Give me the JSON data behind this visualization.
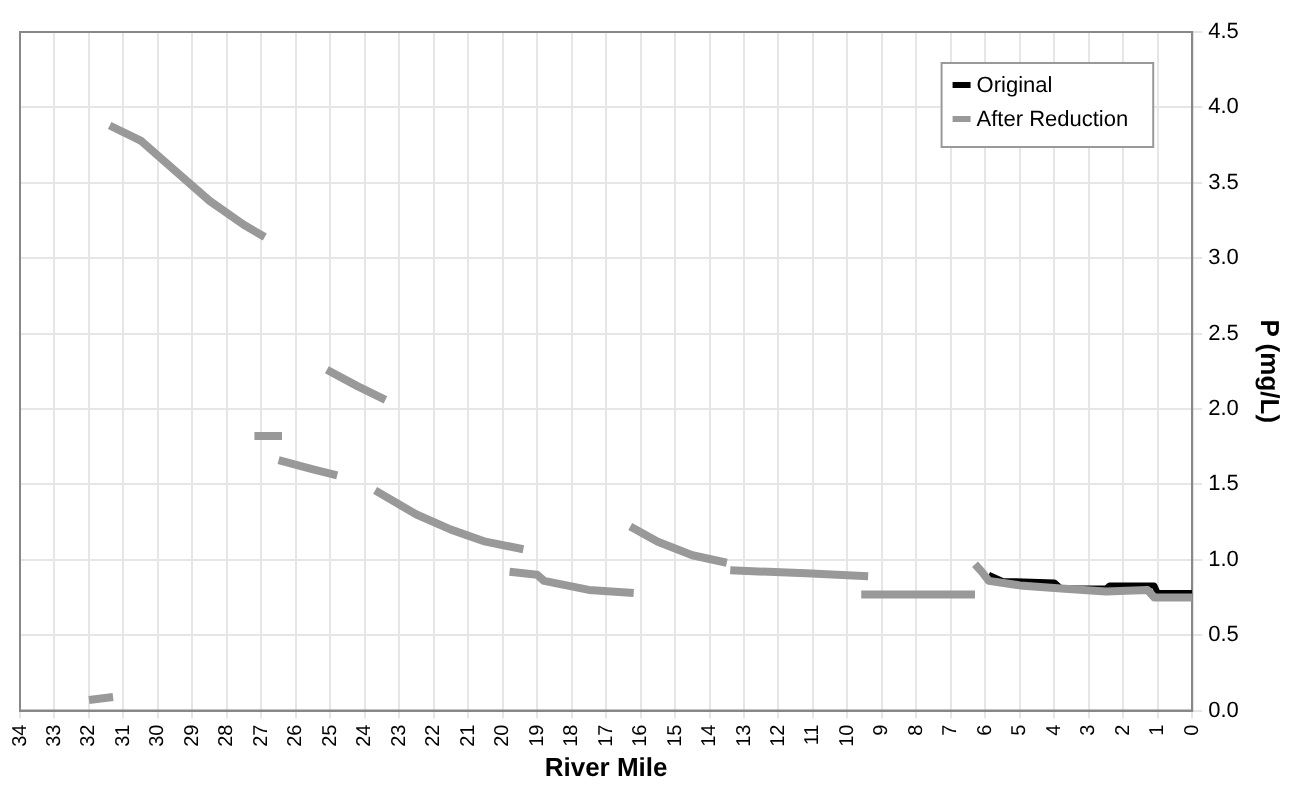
{
  "chart_data": {
    "type": "line",
    "xlabel": "River Mile",
    "ylabel": "P (mg/L)",
    "xlim": [
      34,
      0
    ],
    "xticks": [
      34,
      33,
      32,
      31,
      30,
      29,
      28,
      27,
      26,
      25,
      24,
      23,
      22,
      21,
      20,
      19,
      18,
      17,
      16,
      15,
      14,
      13,
      12,
      11,
      10,
      9,
      8,
      7,
      6,
      5,
      4,
      3,
      2,
      1,
      0
    ],
    "ylim": [
      0,
      4.5
    ],
    "yticks": [
      {
        "value": 0,
        "label": "0.0"
      },
      {
        "value": 0.5,
        "label": "0.5"
      },
      {
        "value": 1,
        "label": "1.0"
      },
      {
        "value": 1.5,
        "label": "1.5"
      },
      {
        "value": 2,
        "label": "2.0"
      },
      {
        "value": 2.5,
        "label": "2.5"
      },
      {
        "value": 3,
        "label": "3.0"
      },
      {
        "value": 3.5,
        "label": "3.5"
      },
      {
        "value": 4,
        "label": "4.0"
      },
      {
        "value": 4.5,
        "label": "4.5"
      }
    ],
    "grid": true,
    "legend": "top right",
    "marker": "none",
    "line_style": "solid",
    "series": [
      {
        "name": "Original",
        "color": "#000000",
        "x": [
          5.9,
          5.5,
          4.0,
          3.8,
          2.5,
          2.4,
          1.1,
          1.0,
          0
        ],
        "values": [
          0.9,
          0.86,
          0.85,
          0.81,
          0.81,
          0.83,
          0.83,
          0.78,
          0.78
        ]
      },
      {
        "name": "After Reduction",
        "color": "#999999",
        "x": [
          32.0,
          31.3,
          null,
          31.4,
          30.5,
          29.5,
          28.5,
          27.5,
          26.9,
          null,
          27.2,
          26.4,
          null,
          26.5,
          25.5,
          24.8,
          null,
          25.1,
          24.2,
          23.4,
          null,
          23.7,
          22.5,
          21.5,
          20.5,
          19.4,
          null,
          19.8,
          19.0,
          18.8,
          17.5,
          16.2,
          null,
          16.3,
          15.5,
          14.5,
          13.5,
          null,
          13.4,
          11.2,
          9.4,
          null,
          9.6,
          6.3,
          null,
          6.3,
          6.1,
          5.9,
          5.0,
          3.8,
          2.5,
          1.3,
          1.1,
          0
        ],
        "values": [
          0.07,
          0.09,
          null,
          3.88,
          3.78,
          3.58,
          3.38,
          3.22,
          3.14,
          null,
          1.82,
          1.82,
          null,
          1.66,
          1.6,
          1.56,
          null,
          2.26,
          2.15,
          2.06,
          null,
          1.46,
          1.3,
          1.2,
          1.12,
          1.07,
          null,
          0.92,
          0.9,
          0.86,
          0.8,
          0.78,
          null,
          1.22,
          1.12,
          1.03,
          0.98,
          null,
          0.93,
          0.91,
          0.89,
          null,
          0.77,
          0.77,
          null,
          0.97,
          0.92,
          0.86,
          0.83,
          0.81,
          0.79,
          0.8,
          0.75,
          0.75
        ]
      }
    ]
  }
}
